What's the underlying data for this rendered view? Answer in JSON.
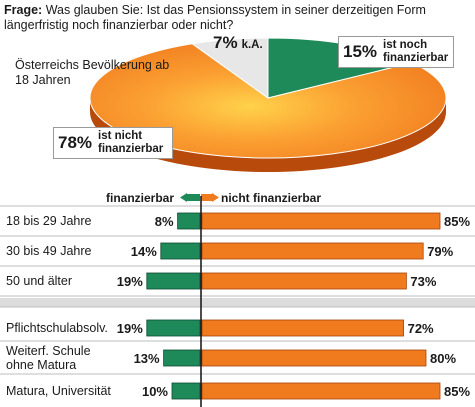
{
  "question": {
    "prefix": "Frage:",
    "text": "Was glauben Sie: Ist das Pensionssystem in seiner derzeitigen Form längerfristig noch finanzierbar oder nicht?"
  },
  "pie_subtitle": "Österreichs Bevölkerung ab 18 Jahren",
  "legend": {
    "left": "finanzierbar",
    "right": "nicht finanzierbar"
  },
  "colors": {
    "green": "#1e8a5a",
    "orange": "#f07a1e",
    "grey": "#e7e7e7"
  },
  "chart_data": [
    {
      "type": "pie",
      "slices": [
        {
          "label": "ist noch finanzierbar",
          "pct_text": "15%",
          "value": 15
        },
        {
          "label": "ist nicht finanzierbar",
          "pct_text": "78%",
          "value": 78
        },
        {
          "label": "k.A.",
          "pct_text": "7%",
          "value": 7
        }
      ]
    },
    {
      "type": "bar",
      "series": [
        {
          "name": "finanzierbar",
          "values": [
            8,
            14,
            19,
            19,
            13,
            10
          ]
        },
        {
          "name": "nicht finanzierbar",
          "values": [
            85,
            79,
            73,
            72,
            80,
            85
          ]
        }
      ],
      "categories": [
        "18 bis 29 Jahre",
        "30 bis 49 Jahre",
        "50 und älter",
        "Pflichtschulabsolv.",
        "Weiterf. Schule ohne Matura",
        "Matura, Universität"
      ],
      "left_labels": [
        "8%",
        "14%",
        "19%",
        "19%",
        "13%",
        "10%"
      ],
      "right_labels": [
        "85%",
        "79%",
        "73%",
        "72%",
        "80%",
        "85%"
      ]
    }
  ]
}
